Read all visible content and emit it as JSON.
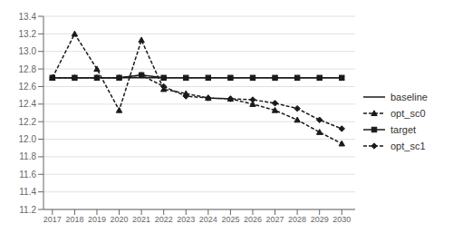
{
  "chart_data": {
    "type": "line",
    "x": [
      2017,
      2018,
      2019,
      2020,
      2021,
      2022,
      2023,
      2024,
      2025,
      2026,
      2027,
      2028,
      2029,
      2030
    ],
    "series": [
      {
        "name": "baseline",
        "color": "#1a1a1a",
        "values": [
          12.7,
          12.7,
          12.7,
          12.7,
          12.7,
          12.7,
          12.7,
          12.7,
          12.7,
          12.7,
          12.7,
          12.7,
          12.7,
          12.7
        ],
        "marker": "none",
        "line_style": "solid"
      },
      {
        "name": "opt_sc0",
        "color": "#1a1a1a",
        "values": [
          12.7,
          13.2,
          12.8,
          12.33,
          13.13,
          12.57,
          12.52,
          12.47,
          12.46,
          12.4,
          12.33,
          12.22,
          12.08,
          11.95
        ],
        "marker": "triangle",
        "line_style": "dashed"
      },
      {
        "name": "target",
        "color": "#1a1a1a",
        "values": [
          12.7,
          12.7,
          12.7,
          12.7,
          12.73,
          12.7,
          12.7,
          12.7,
          12.7,
          12.7,
          12.7,
          12.7,
          12.7,
          12.7
        ],
        "marker": "square",
        "line_style": "solid"
      },
      {
        "name": "opt_sc1",
        "color": "#1a1a1a",
        "values": [
          12.7,
          12.7,
          12.7,
          12.7,
          12.73,
          12.6,
          12.49,
          12.47,
          12.46,
          12.45,
          12.41,
          12.35,
          12.22,
          12.12
        ],
        "marker": "diamond",
        "line_style": "dashed"
      }
    ],
    "xlim": [
      2016.6,
      2030.6
    ],
    "xticks": [
      2017,
      2018,
      2019,
      2020,
      2021,
      2022,
      2023,
      2024,
      2025,
      2026,
      2027,
      2028,
      2029,
      2030
    ],
    "ylim": [
      11.2,
      13.4
    ],
    "yticks": [
      11.2,
      11.4,
      11.6,
      11.8,
      {
        "value": 12.0,
        "label": "12.0"
      },
      12.2,
      12.4,
      12.6,
      12.8,
      {
        "value": 13.0,
        "label": "13.0"
      },
      13.2,
      13.4
    ],
    "grid": "y",
    "legend": "right"
  }
}
